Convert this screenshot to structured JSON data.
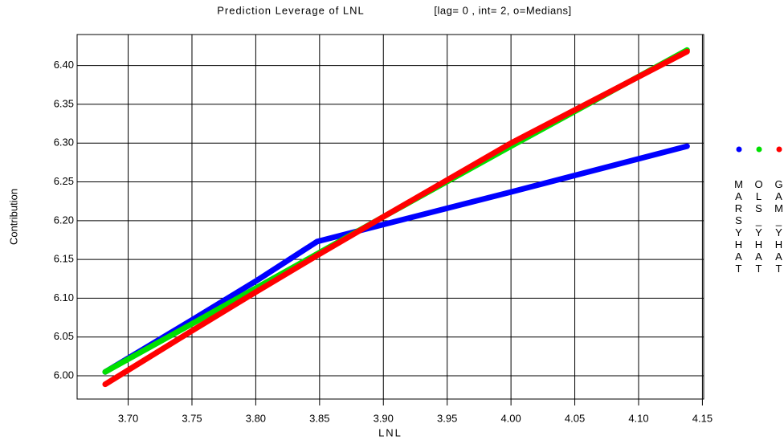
{
  "chart_data": {
    "type": "line",
    "title": "Prediction Leverage of LNL",
    "subtitle": "[lag= 0 , int= 2, o=Medians]",
    "x_label": "LNL",
    "y_label": "Contribution",
    "xlim": [
      3.66,
      4.151
    ],
    "ylim": [
      5.97,
      6.44
    ],
    "xticks": [
      {
        "value": 3.7,
        "label": "3.70"
      },
      {
        "value": 3.75,
        "label": "3.75"
      },
      {
        "value": 3.8,
        "label": "3.80"
      },
      {
        "value": 3.85,
        "label": "3.85"
      },
      {
        "value": 3.9,
        "label": "3.90"
      },
      {
        "value": 3.95,
        "label": "3.95"
      },
      {
        "value": 4.0,
        "label": "4.00"
      },
      {
        "value": 4.05,
        "label": "4.05"
      },
      {
        "value": 4.1,
        "label": "4.10"
      },
      {
        "value": 4.15,
        "label": "4.15"
      }
    ],
    "yticks": [
      {
        "value": 6.0,
        "label": "6.00"
      },
      {
        "value": 6.05,
        "label": "6.05"
      },
      {
        "value": 6.1,
        "label": "6.10"
      },
      {
        "value": 6.15,
        "label": "6.15"
      },
      {
        "value": 6.2,
        "label": "6.20"
      },
      {
        "value": 6.25,
        "label": "6.25"
      },
      {
        "value": 6.3,
        "label": "6.30"
      },
      {
        "value": 6.35,
        "label": "6.35"
      },
      {
        "value": 6.4,
        "label": "6.40"
      }
    ],
    "grid": true,
    "x": [
      3.682,
      3.75,
      3.8,
      3.848,
      3.9,
      4.0,
      4.138
    ],
    "series": [
      {
        "name": "MARSYHAT",
        "color": "#0000ff",
        "values": [
          6.005,
          6.072,
          6.122,
          6.173,
          6.195,
          6.237,
          6.296
        ]
      },
      {
        "name": "OLS_YHAT",
        "color": "#00e000",
        "values": [
          6.005,
          6.067,
          6.113,
          6.157,
          6.205,
          6.296,
          6.42
        ]
      },
      {
        "name": "GAM_YHAT",
        "color": "#ff0000",
        "values": [
          5.989,
          6.058,
          6.108,
          6.155,
          6.205,
          6.3,
          6.418
        ]
      }
    ]
  }
}
